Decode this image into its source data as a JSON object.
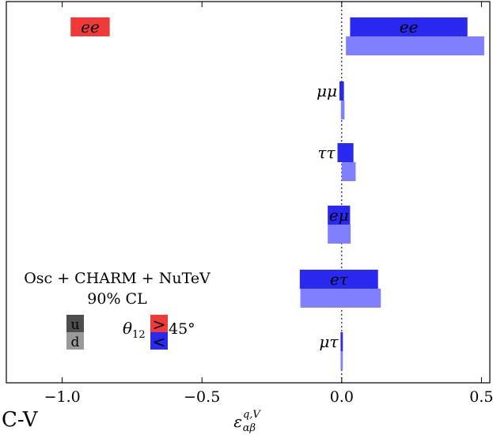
{
  "chart_data": {
    "type": "bar",
    "orientation": "horizontal",
    "xlabel": "ε",
    "xlabel_sup": "q,V",
    "xlabel_sub": "αβ",
    "xlim": [
      -1.2,
      0.53
    ],
    "xticks": [
      -1.0,
      -0.5,
      0.0,
      0.5
    ],
    "xtick_labels": [
      "−1.0",
      "−0.5",
      "0.0",
      "0.5"
    ],
    "reference_line_x": 0.0,
    "grid": false,
    "colors": {
      "u_upper": "#2929f0",
      "d_upper": "#8080ff",
      "u_lower": "#f03a3a",
      "u_swatch": "#4d4d4d",
      "d_swatch": "#999999"
    },
    "rows": [
      {
        "label": "ee",
        "theta_upper": {
          "u": [
            0.03,
            0.45
          ],
          "d": [
            0.015,
            0.51
          ]
        },
        "theta_lower": {
          "u": [
            -0.97,
            -0.83
          ]
        }
      },
      {
        "label": "μμ",
        "theta_upper": {
          "u": [
            -0.008,
            0.008
          ],
          "d": [
            -0.003,
            0.01
          ]
        }
      },
      {
        "label": "ττ",
        "theta_upper": {
          "u": [
            -0.015,
            0.042
          ],
          "d": [
            0.0,
            0.05
          ]
        }
      },
      {
        "label": "eμ",
        "theta_upper": {
          "u": [
            -0.05,
            0.03
          ],
          "d": [
            -0.05,
            0.032
          ]
        }
      },
      {
        "label": "eτ",
        "theta_upper": {
          "u": [
            -0.15,
            0.13
          ],
          "d": [
            -0.148,
            0.14
          ]
        }
      },
      {
        "label": "μτ",
        "theta_upper": {
          "u": [
            -0.004,
            0.004
          ],
          "d": [
            -0.004,
            0.004
          ]
        }
      }
    ],
    "annotation": {
      "line1": "Osc + CHARM + NuTeV",
      "line2": "90% CL"
    },
    "legend": {
      "u_label": "u",
      "d_label": "d",
      "theta_symbol": "θ",
      "theta_sub": "12",
      "gt_symbol": ">",
      "lt_symbol": "<",
      "angle_label": "45°"
    }
  },
  "corner_text": "C-V"
}
